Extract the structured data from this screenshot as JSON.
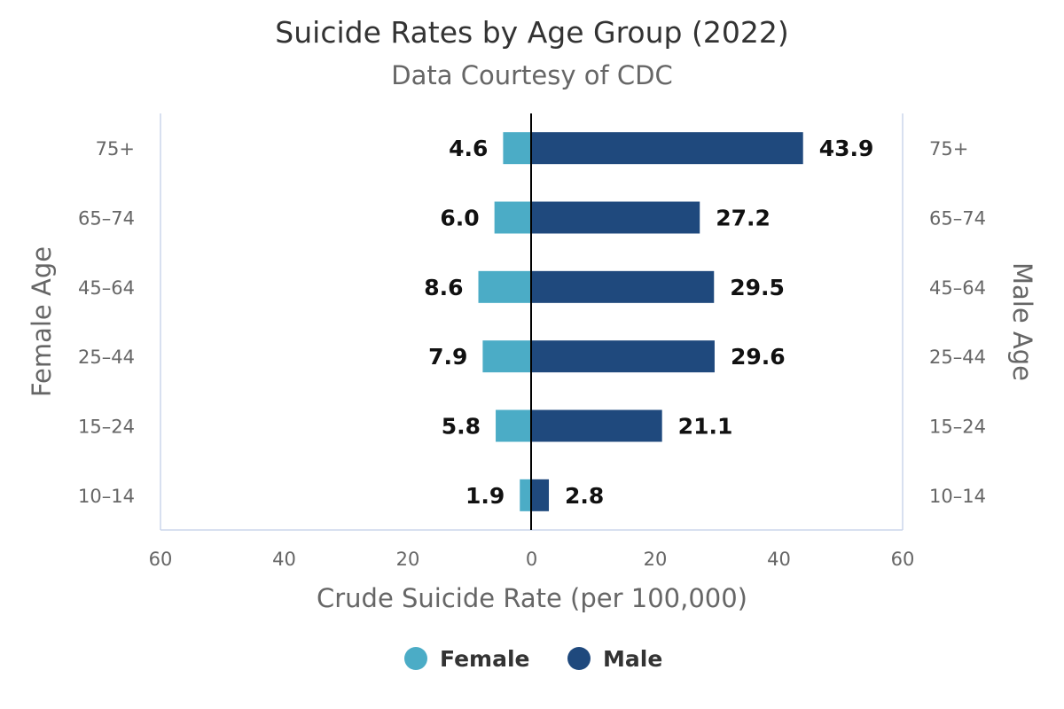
{
  "chart_data": {
    "type": "bar",
    "orientation": "horizontal",
    "layout": "diverging",
    "title": "Suicide Rates by Age Group (2022)",
    "subtitle": "Data Courtesy of CDC",
    "categories": [
      "75+",
      "65–74",
      "45–64",
      "25–44",
      "15–24",
      "10–14"
    ],
    "series": [
      {
        "name": "Female",
        "color": "#4bacc6",
        "values": [
          4.6,
          6.0,
          8.6,
          7.9,
          5.8,
          1.9
        ]
      },
      {
        "name": "Male",
        "color": "#1f497d",
        "values": [
          43.9,
          27.2,
          29.5,
          29.6,
          21.1,
          2.8
        ]
      }
    ],
    "xlabel": "Crude Suicide Rate (per 100,000)",
    "left_ylabel": "Female Age",
    "right_ylabel": "Male Age",
    "xlim": [
      -60,
      60
    ],
    "x_ticks": [
      -60,
      -40,
      -20,
      0,
      20,
      40,
      60
    ],
    "x_tick_labels": [
      "60",
      "40",
      "20",
      "0",
      "20",
      "40",
      "60"
    ],
    "grid": false,
    "legend_position": "bottom-center"
  }
}
